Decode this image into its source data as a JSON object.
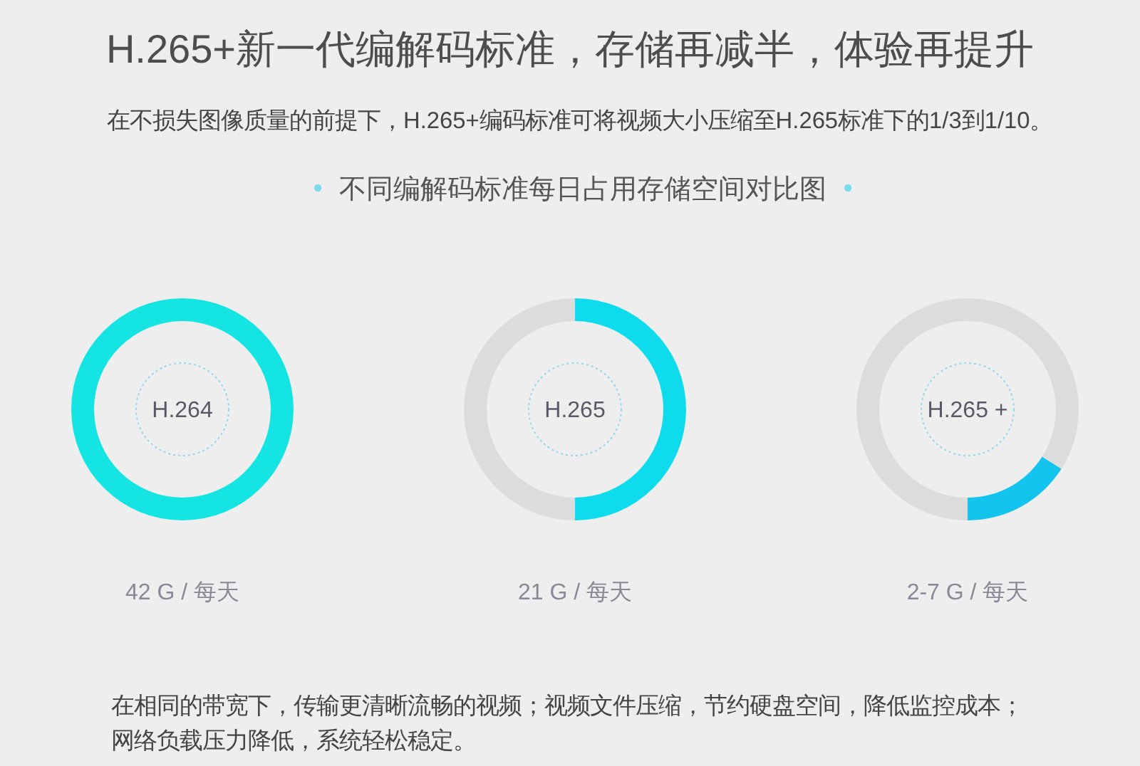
{
  "chart_data": [
    {
      "type": "other",
      "title": "H.265+新一代编解码标准，存储再减半，体验再提升",
      "subtitle": "在不损失图像质量的前提下，H.265+编码标准可将视频大小压缩至H.265标准下的1/3到1/10。",
      "annotations": [
        "不同编解码标准每日占用存储空间对比图",
        "在相同的带宽下，传输更清晰流畅的视频；视频文件压缩，节约硬盘空间，降低监控成本；网络负载压力降低，系统轻松稳定。"
      ]
    },
    {
      "type": "donut",
      "categories": [
        "H.264"
      ],
      "values": [
        100
      ],
      "colors": [
        "#14e4e2"
      ],
      "annotations": [
        "42 G / 每天"
      ]
    },
    {
      "type": "donut",
      "categories": [
        "H.265",
        null
      ],
      "values": [
        50,
        50
      ],
      "colors": [
        "#0edcec",
        "#dcdcdc"
      ],
      "annotations": [
        "21 G / 每天"
      ]
    },
    {
      "type": "donut",
      "categories": [
        "H.265 +",
        null
      ],
      "values": [
        16,
        84
      ],
      "colors": [
        "#12c4ee",
        "#dcdcdc"
      ],
      "annotations": [
        "2-7 G / 每天"
      ]
    }
  ]
}
